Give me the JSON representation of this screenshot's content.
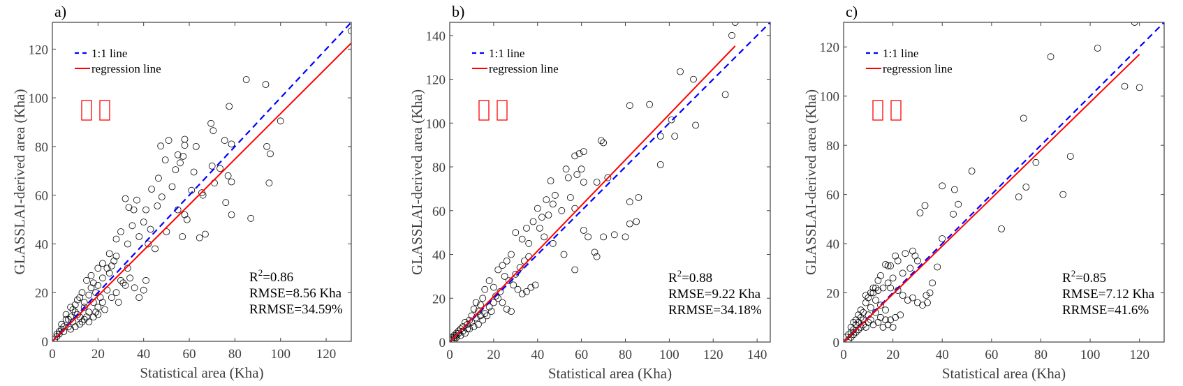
{
  "chart_data": [
    {
      "type": "scatter",
      "panel_label": "a)",
      "xlabel": "Statistical area (Kha)",
      "ylabel": "GLASSLAI-derived area (Kha)",
      "xlim": [
        0,
        131
      ],
      "ylim": [
        0,
        131
      ],
      "xticks": [
        0,
        20,
        40,
        60,
        80,
        100,
        120
      ],
      "yticks": [
        0,
        20,
        40,
        60,
        80,
        100,
        120
      ],
      "legend": {
        "position": "top-left",
        "entries": [
          "1:1 line",
          "regression line"
        ]
      },
      "annotation_glyphs": "□□",
      "stats": {
        "r2": "R",
        "r2_sup": "2",
        "r2_value": "=0.86",
        "rmse": "RMSE=8.56 Kha",
        "rrmse": "RRMSE=34.59%"
      },
      "regression": {
        "slope": 0.935,
        "intercept": 0.0,
        "x_end": 131
      },
      "points": [
        [
          131,
          127.5
        ],
        [
          85,
          107.5
        ],
        [
          93.5,
          105.5
        ],
        [
          77.5,
          96.5
        ],
        [
          100,
          90.5
        ],
        [
          69.5,
          89.5
        ],
        [
          70.5,
          86.5
        ],
        [
          58,
          83
        ],
        [
          51,
          82.5
        ],
        [
          58,
          80.5
        ],
        [
          63,
          80
        ],
        [
          78.5,
          81
        ],
        [
          75.5,
          82.5
        ],
        [
          47.5,
          80.2
        ],
        [
          55,
          76.6
        ],
        [
          57.3,
          76
        ],
        [
          49.5,
          74.5
        ],
        [
          56,
          73.3
        ],
        [
          70,
          72
        ],
        [
          73.5,
          71
        ],
        [
          54,
          70.5
        ],
        [
          62,
          69.5
        ],
        [
          77,
          68
        ],
        [
          94,
          80
        ],
        [
          95.5,
          77
        ],
        [
          46.5,
          67
        ],
        [
          71,
          65
        ],
        [
          78.5,
          65.5
        ],
        [
          95,
          65
        ],
        [
          43.5,
          62.5
        ],
        [
          52.5,
          63.5
        ],
        [
          61,
          62
        ],
        [
          65.5,
          61
        ],
        [
          48,
          59.3
        ],
        [
          37,
          58
        ],
        [
          41,
          54
        ],
        [
          46,
          55.6
        ],
        [
          32,
          58.6
        ],
        [
          33.5,
          55
        ],
        [
          35.7,
          54
        ],
        [
          40,
          49
        ],
        [
          43,
          46
        ],
        [
          55,
          54
        ],
        [
          66,
          60
        ],
        [
          58,
          52
        ],
        [
          59,
          50
        ],
        [
          67,
          44
        ],
        [
          64.5,
          42.5
        ],
        [
          78.5,
          52
        ],
        [
          76,
          57
        ],
        [
          87,
          50.5
        ],
        [
          30,
          45
        ],
        [
          28,
          42
        ],
        [
          35,
          47.5
        ],
        [
          33,
          40
        ],
        [
          38,
          43
        ],
        [
          42,
          40
        ],
        [
          45,
          38
        ],
        [
          50,
          45
        ],
        [
          57,
          43
        ],
        [
          20,
          30
        ],
        [
          22,
          32
        ],
        [
          25,
          28
        ],
        [
          28,
          35
        ],
        [
          30,
          25
        ],
        [
          32,
          23
        ],
        [
          34,
          26
        ],
        [
          36,
          22
        ],
        [
          38,
          18
        ],
        [
          40,
          21
        ],
        [
          41,
          25
        ],
        [
          24,
          21
        ],
        [
          26,
          18
        ],
        [
          28,
          20
        ],
        [
          29,
          16
        ],
        [
          31,
          24
        ],
        [
          33,
          30
        ],
        [
          15,
          25
        ],
        [
          17,
          22
        ],
        [
          18,
          16
        ],
        [
          19,
          12
        ],
        [
          20,
          14
        ],
        [
          21,
          18
        ],
        [
          22,
          16
        ],
        [
          23,
          13
        ],
        [
          14,
          14
        ],
        [
          15,
          10
        ],
        [
          16,
          12
        ],
        [
          12,
          18
        ],
        [
          13,
          8
        ],
        [
          11,
          11
        ],
        [
          10,
          15
        ],
        [
          9,
          8
        ],
        [
          8,
          10
        ],
        [
          7,
          6
        ],
        [
          6,
          9
        ],
        [
          5,
          4
        ],
        [
          4,
          5
        ],
        [
          3,
          3
        ],
        [
          2,
          2
        ],
        [
          1,
          1
        ],
        [
          6,
          11
        ],
        [
          8,
          14
        ],
        [
          10,
          12
        ],
        [
          12,
          10
        ],
        [
          14,
          16
        ],
        [
          16,
          19
        ],
        [
          18,
          24
        ],
        [
          11,
          17
        ],
        [
          9,
          13
        ],
        [
          7,
          9
        ],
        [
          5,
          6
        ],
        [
          3,
          4
        ],
        [
          2,
          3
        ],
        [
          4,
          7
        ],
        [
          13,
          20
        ],
        [
          17,
          27
        ],
        [
          20,
          23
        ],
        [
          22,
          26
        ],
        [
          24,
          30
        ],
        [
          26,
          31
        ],
        [
          27,
          33
        ],
        [
          19,
          20
        ],
        [
          25,
          36
        ],
        [
          8,
          5
        ],
        [
          10,
          6
        ],
        [
          12,
          7
        ],
        [
          14,
          9
        ],
        [
          16,
          8
        ],
        [
          18,
          10
        ],
        [
          20,
          11
        ]
      ]
    },
    {
      "type": "scatter",
      "panel_label": "b)",
      "xlabel": "Statistical area (Kha)",
      "ylabel": "GLASSLAI-derived area (Kha)",
      "xlim": [
        0,
        146
      ],
      "ylim": [
        0,
        146
      ],
      "xticks": [
        0,
        20,
        40,
        60,
        80,
        100,
        120,
        140
      ],
      "yticks": [
        0,
        20,
        40,
        60,
        80,
        100,
        120,
        140
      ],
      "legend": {
        "position": "top-left",
        "entries": [
          "1:1 line",
          "regression line"
        ]
      },
      "annotation_glyphs": "□□",
      "stats": {
        "r2": "R",
        "r2_sup": "2",
        "r2_value": "=0.88",
        "rmse": "RMSE=9.22 Kha",
        "rrmse": "RRMSE=34.18%"
      },
      "regression": {
        "slope": 1.04,
        "intercept": 0.0,
        "x_end": 130
      },
      "points": [
        [
          130,
          146
        ],
        [
          128.5,
          140
        ],
        [
          105,
          123.5
        ],
        [
          111,
          120
        ],
        [
          125.5,
          113
        ],
        [
          82,
          108
        ],
        [
          91,
          108.5
        ],
        [
          101,
          101.5
        ],
        [
          112,
          99
        ],
        [
          102.5,
          94
        ],
        [
          96,
          94
        ],
        [
          96,
          81
        ],
        [
          69,
          92
        ],
        [
          70,
          91
        ],
        [
          59,
          86
        ],
        [
          61,
          87
        ],
        [
          57,
          85
        ],
        [
          60,
          79
        ],
        [
          53,
          79
        ],
        [
          58,
          76.5
        ],
        [
          54,
          75
        ],
        [
          61,
          73
        ],
        [
          67,
          73
        ],
        [
          72,
          75
        ],
        [
          46,
          73.6
        ],
        [
          44,
          65
        ],
        [
          47,
          63
        ],
        [
          51,
          60
        ],
        [
          48,
          67
        ],
        [
          55,
          66
        ],
        [
          57,
          61
        ],
        [
          45,
          58
        ],
        [
          40,
          61
        ],
        [
          42,
          57
        ],
        [
          38,
          55
        ],
        [
          35,
          52
        ],
        [
          30,
          50
        ],
        [
          33,
          47
        ],
        [
          36,
          45
        ],
        [
          41,
          52
        ],
        [
          43,
          48
        ],
        [
          47,
          45
        ],
        [
          52,
          40
        ],
        [
          57,
          33
        ],
        [
          61,
          51
        ],
        [
          63,
          48
        ],
        [
          66,
          41
        ],
        [
          67,
          39
        ],
        [
          70,
          48
        ],
        [
          75,
          49
        ],
        [
          80,
          48
        ],
        [
          85,
          55
        ],
        [
          86,
          66
        ],
        [
          82,
          54
        ],
        [
          82,
          64
        ],
        [
          28,
          40
        ],
        [
          26,
          37
        ],
        [
          24,
          35
        ],
        [
          22,
          33
        ],
        [
          25,
          30
        ],
        [
          27,
          28
        ],
        [
          29,
          26
        ],
        [
          31,
          24
        ],
        [
          33,
          22
        ],
        [
          35,
          23
        ],
        [
          37,
          25
        ],
        [
          39,
          26
        ],
        [
          20,
          25
        ],
        [
          22,
          20
        ],
        [
          24,
          18
        ],
        [
          26,
          15
        ],
        [
          28,
          14
        ],
        [
          18,
          28
        ],
        [
          16,
          24
        ],
        [
          15,
          20
        ],
        [
          14,
          17
        ],
        [
          13,
          14
        ],
        [
          12,
          18
        ],
        [
          11,
          15
        ],
        [
          10,
          12
        ],
        [
          9,
          10
        ],
        [
          8,
          8
        ],
        [
          7,
          9
        ],
        [
          6,
          7
        ],
        [
          5,
          6
        ],
        [
          4,
          4
        ],
        [
          3,
          3
        ],
        [
          2,
          2
        ],
        [
          1,
          1
        ],
        [
          2,
          3
        ],
        [
          3,
          4
        ],
        [
          4,
          5
        ],
        [
          5,
          3
        ],
        [
          6,
          5
        ],
        [
          8,
          6
        ],
        [
          10,
          9
        ],
        [
          12,
          11
        ],
        [
          14,
          12
        ],
        [
          16,
          13
        ],
        [
          18,
          16
        ],
        [
          20,
          18
        ],
        [
          21,
          21
        ],
        [
          23,
          23
        ],
        [
          19,
          14
        ],
        [
          17,
          12
        ],
        [
          15,
          10
        ],
        [
          13,
          8
        ],
        [
          11,
          7
        ],
        [
          9,
          6
        ],
        [
          7,
          4
        ],
        [
          1,
          2
        ],
        [
          2,
          1
        ],
        [
          3,
          2
        ],
        [
          30,
          31
        ],
        [
          32,
          34
        ],
        [
          34,
          37
        ],
        [
          36,
          39
        ]
      ]
    },
    {
      "type": "scatter",
      "panel_label": "c)",
      "xlabel": "Statistical area (Kha)",
      "ylabel": "GLASSLAI-derived area (Kha)",
      "xlim": [
        0,
        130
      ],
      "ylim": [
        0,
        130
      ],
      "xticks": [
        0,
        20,
        40,
        60,
        80,
        100,
        120
      ],
      "yticks": [
        0,
        20,
        40,
        60,
        80,
        100,
        120
      ],
      "legend": {
        "position": "top-left",
        "entries": [
          "1:1 line",
          "regression line"
        ]
      },
      "annotation_glyphs": "□□",
      "stats": {
        "r2": "R",
        "r2_sup": "2",
        "r2_value": "=0.85",
        "rmse": "RMSE=7.12 Kha",
        "rrmse": "RRMSE=41.6%"
      },
      "regression": {
        "slope": 0.975,
        "intercept": 0.0,
        "x_end": 120
      },
      "points": [
        [
          118,
          130
        ],
        [
          103,
          119.5
        ],
        [
          84,
          116
        ],
        [
          73,
          91
        ],
        [
          114,
          104
        ],
        [
          120,
          103.5
        ],
        [
          92,
          75.5
        ],
        [
          89,
          60
        ],
        [
          78,
          73
        ],
        [
          74,
          63
        ],
        [
          71,
          59
        ],
        [
          64,
          46
        ],
        [
          52,
          69.5
        ],
        [
          45,
          62
        ],
        [
          46.5,
          56
        ],
        [
          40,
          63.5
        ],
        [
          44.5,
          52
        ],
        [
          33,
          55.5
        ],
        [
          31,
          52.5
        ],
        [
          40,
          42
        ],
        [
          38,
          30.5
        ],
        [
          36,
          24
        ],
        [
          35,
          20
        ],
        [
          33.5,
          19
        ],
        [
          34,
          16
        ],
        [
          22,
          33
        ],
        [
          18,
          31
        ],
        [
          19,
          31
        ],
        [
          17,
          31.5
        ],
        [
          21,
          35
        ],
        [
          25,
          36
        ],
        [
          28,
          37
        ],
        [
          29,
          35
        ],
        [
          30,
          33
        ],
        [
          27,
          30
        ],
        [
          24,
          28
        ],
        [
          20,
          26
        ],
        [
          15,
          27
        ],
        [
          14,
          25
        ],
        [
          16,
          22
        ],
        [
          18,
          24
        ],
        [
          19,
          22
        ],
        [
          22,
          21
        ],
        [
          24,
          19
        ],
        [
          26,
          17
        ],
        [
          28,
          18
        ],
        [
          30,
          16
        ],
        [
          32,
          15
        ],
        [
          12,
          20
        ],
        [
          10,
          18
        ],
        [
          9,
          16
        ],
        [
          11,
          14
        ],
        [
          13,
          12
        ],
        [
          15,
          10
        ],
        [
          17,
          9
        ],
        [
          19,
          9
        ],
        [
          21,
          10
        ],
        [
          23,
          11
        ],
        [
          8,
          12
        ],
        [
          7,
          10
        ],
        [
          6,
          8
        ],
        [
          5,
          7
        ],
        [
          4,
          5
        ],
        [
          3,
          4
        ],
        [
          2,
          3
        ],
        [
          1,
          2
        ],
        [
          2,
          1
        ],
        [
          3,
          2
        ],
        [
          4,
          3
        ],
        [
          5,
          4
        ],
        [
          6,
          5
        ],
        [
          7,
          6
        ],
        [
          8,
          7
        ],
        [
          9,
          6
        ],
        [
          10,
          8
        ],
        [
          11,
          9
        ],
        [
          12,
          7
        ],
        [
          14,
          8
        ],
        [
          16,
          6
        ],
        [
          18,
          7
        ],
        [
          20,
          6
        ],
        [
          13,
          17
        ],
        [
          15,
          15
        ],
        [
          17,
          13
        ],
        [
          10,
          11
        ],
        [
          8,
          9
        ],
        [
          6,
          11
        ],
        [
          4,
          8
        ],
        [
          3,
          6
        ],
        [
          12,
          22
        ],
        [
          13,
          22
        ],
        [
          14,
          21
        ],
        [
          11,
          20
        ],
        [
          9,
          19
        ],
        [
          7,
          13
        ],
        [
          5,
          9
        ]
      ]
    }
  ],
  "colors": {
    "one_to_one": "#0000ff",
    "regression": "#ff0000",
    "points": "#000000",
    "axis": "#404040",
    "glyph_box": "#ff0000"
  }
}
